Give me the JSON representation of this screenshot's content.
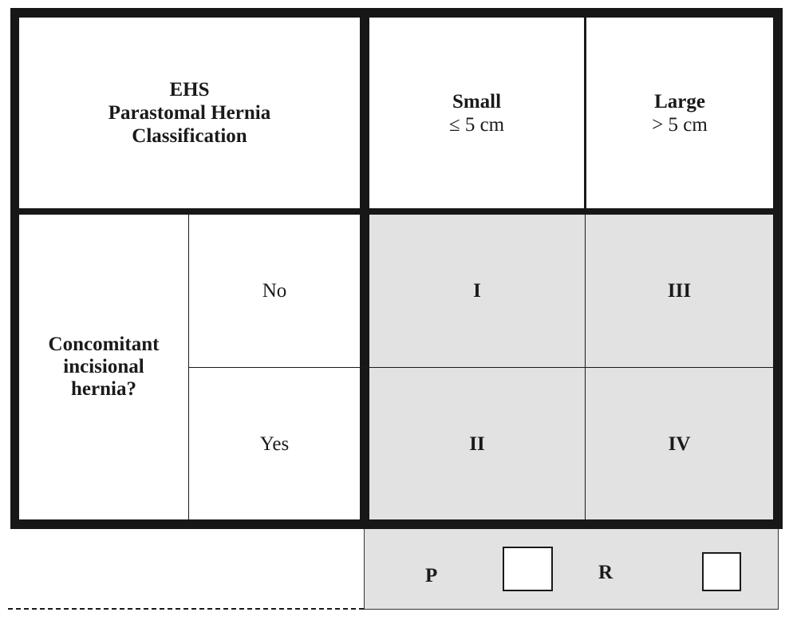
{
  "header": {
    "title_lines": [
      "EHS",
      "Parastomal Hernia",
      "Classification"
    ],
    "columns": [
      {
        "label": "Small",
        "criterion": "≤ 5 cm"
      },
      {
        "label": "Large",
        "criterion": "> 5 cm"
      }
    ]
  },
  "row_group": {
    "label_lines": [
      "Concomitant",
      "incisional",
      "hernia?"
    ],
    "rows": [
      {
        "label": "No",
        "values": [
          "I",
          "III"
        ]
      },
      {
        "label": "Yes",
        "values": [
          "II",
          "IV"
        ]
      }
    ]
  },
  "footer": {
    "options": [
      {
        "label": "P",
        "checked": false
      },
      {
        "label": "R",
        "checked": false
      }
    ]
  },
  "colors": {
    "border": "#171717",
    "shaded_cell": "#e2e2e2",
    "background": "#ffffff"
  }
}
